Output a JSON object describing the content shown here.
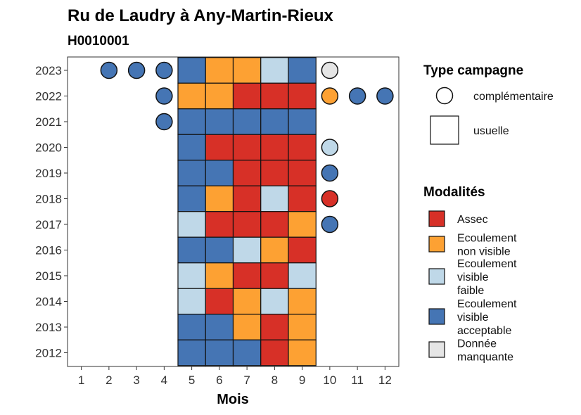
{
  "chart_data": {
    "type": "heatmap",
    "title": "Ru de Laudry à Any-Martin-Rieux",
    "subtitle": "H0010001",
    "xlabel": "Mois",
    "ylabel": "",
    "x_ticks": [
      1,
      2,
      3,
      4,
      5,
      6,
      7,
      8,
      9,
      10,
      11,
      12
    ],
    "y_ticks": [
      2012,
      2013,
      2014,
      2015,
      2016,
      2017,
      2018,
      2019,
      2020,
      2021,
      2022,
      2023
    ],
    "xlim": [
      0.5,
      12.5
    ],
    "grid": false,
    "legend_position": "right",
    "modalities": [
      {
        "key": "assec",
        "label_lines": [
          "Assec"
        ],
        "color": "#D73027"
      },
      {
        "key": "nonvis",
        "label_lines": [
          "Ecoulement",
          "non visible"
        ],
        "color": "#FDA133"
      },
      {
        "key": "faible",
        "label_lines": [
          "Ecoulement",
          "visible",
          "faible"
        ],
        "color": "#BFD8E8"
      },
      {
        "key": "accept",
        "label_lines": [
          "Ecoulement",
          "visible",
          "acceptable"
        ],
        "color": "#4575B4"
      },
      {
        "key": "manq",
        "label_lines": [
          "Donnée",
          "manquante"
        ],
        "color": "#E5E5E5"
      }
    ],
    "campaign_types": [
      {
        "key": "complementaire",
        "label": "complémentaire",
        "shape": "circle"
      },
      {
        "key": "usuelle",
        "label": "usuelle",
        "shape": "square"
      }
    ],
    "legend_titles": {
      "campaign": "Type campagne",
      "modalities": "Modalités"
    },
    "observations": [
      {
        "year": 2023,
        "month": 2,
        "value": "accept",
        "campaign": "complementaire"
      },
      {
        "year": 2023,
        "month": 3,
        "value": "accept",
        "campaign": "complementaire"
      },
      {
        "year": 2023,
        "month": 4,
        "value": "accept",
        "campaign": "complementaire"
      },
      {
        "year": 2023,
        "month": 5,
        "value": "accept",
        "campaign": "usuelle"
      },
      {
        "year": 2023,
        "month": 6,
        "value": "nonvis",
        "campaign": "usuelle"
      },
      {
        "year": 2023,
        "month": 7,
        "value": "nonvis",
        "campaign": "usuelle"
      },
      {
        "year": 2023,
        "month": 8,
        "value": "faible",
        "campaign": "usuelle"
      },
      {
        "year": 2023,
        "month": 9,
        "value": "accept",
        "campaign": "usuelle"
      },
      {
        "year": 2023,
        "month": 10,
        "value": "manq",
        "campaign": "complementaire"
      },
      {
        "year": 2022,
        "month": 4,
        "value": "accept",
        "campaign": "complementaire"
      },
      {
        "year": 2022,
        "month": 5,
        "value": "nonvis",
        "campaign": "usuelle"
      },
      {
        "year": 2022,
        "month": 6,
        "value": "nonvis",
        "campaign": "usuelle"
      },
      {
        "year": 2022,
        "month": 7,
        "value": "assec",
        "campaign": "usuelle"
      },
      {
        "year": 2022,
        "month": 8,
        "value": "assec",
        "campaign": "usuelle"
      },
      {
        "year": 2022,
        "month": 9,
        "value": "assec",
        "campaign": "usuelle"
      },
      {
        "year": 2022,
        "month": 10,
        "value": "nonvis",
        "campaign": "complementaire"
      },
      {
        "year": 2022,
        "month": 11,
        "value": "accept",
        "campaign": "complementaire"
      },
      {
        "year": 2022,
        "month": 12,
        "value": "accept",
        "campaign": "complementaire"
      },
      {
        "year": 2021,
        "month": 4,
        "value": "accept",
        "campaign": "complementaire"
      },
      {
        "year": 2021,
        "month": 5,
        "value": "accept",
        "campaign": "usuelle"
      },
      {
        "year": 2021,
        "month": 6,
        "value": "accept",
        "campaign": "usuelle"
      },
      {
        "year": 2021,
        "month": 7,
        "value": "accept",
        "campaign": "usuelle"
      },
      {
        "year": 2021,
        "month": 8,
        "value": "accept",
        "campaign": "usuelle"
      },
      {
        "year": 2021,
        "month": 9,
        "value": "accept",
        "campaign": "usuelle"
      },
      {
        "year": 2020,
        "month": 5,
        "value": "accept",
        "campaign": "usuelle"
      },
      {
        "year": 2020,
        "month": 6,
        "value": "assec",
        "campaign": "usuelle"
      },
      {
        "year": 2020,
        "month": 7,
        "value": "assec",
        "campaign": "usuelle"
      },
      {
        "year": 2020,
        "month": 8,
        "value": "assec",
        "campaign": "usuelle"
      },
      {
        "year": 2020,
        "month": 9,
        "value": "assec",
        "campaign": "usuelle"
      },
      {
        "year": 2020,
        "month": 10,
        "value": "faible",
        "campaign": "complementaire"
      },
      {
        "year": 2019,
        "month": 5,
        "value": "accept",
        "campaign": "usuelle"
      },
      {
        "year": 2019,
        "month": 6,
        "value": "accept",
        "campaign": "usuelle"
      },
      {
        "year": 2019,
        "month": 7,
        "value": "assec",
        "campaign": "usuelle"
      },
      {
        "year": 2019,
        "month": 8,
        "value": "assec",
        "campaign": "usuelle"
      },
      {
        "year": 2019,
        "month": 9,
        "value": "assec",
        "campaign": "usuelle"
      },
      {
        "year": 2019,
        "month": 10,
        "value": "accept",
        "campaign": "complementaire"
      },
      {
        "year": 2018,
        "month": 5,
        "value": "accept",
        "campaign": "usuelle"
      },
      {
        "year": 2018,
        "month": 6,
        "value": "nonvis",
        "campaign": "usuelle"
      },
      {
        "year": 2018,
        "month": 7,
        "value": "assec",
        "campaign": "usuelle"
      },
      {
        "year": 2018,
        "month": 8,
        "value": "faible",
        "campaign": "usuelle"
      },
      {
        "year": 2018,
        "month": 9,
        "value": "assec",
        "campaign": "usuelle"
      },
      {
        "year": 2018,
        "month": 10,
        "value": "assec",
        "campaign": "complementaire"
      },
      {
        "year": 2017,
        "month": 5,
        "value": "faible",
        "campaign": "usuelle"
      },
      {
        "year": 2017,
        "month": 6,
        "value": "assec",
        "campaign": "usuelle"
      },
      {
        "year": 2017,
        "month": 7,
        "value": "assec",
        "campaign": "usuelle"
      },
      {
        "year": 2017,
        "month": 8,
        "value": "assec",
        "campaign": "usuelle"
      },
      {
        "year": 2017,
        "month": 9,
        "value": "nonvis",
        "campaign": "usuelle"
      },
      {
        "year": 2017,
        "month": 10,
        "value": "accept",
        "campaign": "complementaire"
      },
      {
        "year": 2016,
        "month": 5,
        "value": "accept",
        "campaign": "usuelle"
      },
      {
        "year": 2016,
        "month": 6,
        "value": "accept",
        "campaign": "usuelle"
      },
      {
        "year": 2016,
        "month": 7,
        "value": "faible",
        "campaign": "usuelle"
      },
      {
        "year": 2016,
        "month": 8,
        "value": "nonvis",
        "campaign": "usuelle"
      },
      {
        "year": 2016,
        "month": 9,
        "value": "assec",
        "campaign": "usuelle"
      },
      {
        "year": 2015,
        "month": 5,
        "value": "faible",
        "campaign": "usuelle"
      },
      {
        "year": 2015,
        "month": 6,
        "value": "nonvis",
        "campaign": "usuelle"
      },
      {
        "year": 2015,
        "month": 7,
        "value": "assec",
        "campaign": "usuelle"
      },
      {
        "year": 2015,
        "month": 8,
        "value": "assec",
        "campaign": "usuelle"
      },
      {
        "year": 2015,
        "month": 9,
        "value": "faible",
        "campaign": "usuelle"
      },
      {
        "year": 2014,
        "month": 5,
        "value": "faible",
        "campaign": "usuelle"
      },
      {
        "year": 2014,
        "month": 6,
        "value": "assec",
        "campaign": "usuelle"
      },
      {
        "year": 2014,
        "month": 7,
        "value": "nonvis",
        "campaign": "usuelle"
      },
      {
        "year": 2014,
        "month": 8,
        "value": "faible",
        "campaign": "usuelle"
      },
      {
        "year": 2014,
        "month": 9,
        "value": "nonvis",
        "campaign": "usuelle"
      },
      {
        "year": 2013,
        "month": 5,
        "value": "accept",
        "campaign": "usuelle"
      },
      {
        "year": 2013,
        "month": 6,
        "value": "accept",
        "campaign": "usuelle"
      },
      {
        "year": 2013,
        "month": 7,
        "value": "nonvis",
        "campaign": "usuelle"
      },
      {
        "year": 2013,
        "month": 8,
        "value": "assec",
        "campaign": "usuelle"
      },
      {
        "year": 2013,
        "month": 9,
        "value": "nonvis",
        "campaign": "usuelle"
      },
      {
        "year": 2012,
        "month": 5,
        "value": "accept",
        "campaign": "usuelle"
      },
      {
        "year": 2012,
        "month": 6,
        "value": "accept",
        "campaign": "usuelle"
      },
      {
        "year": 2012,
        "month": 7,
        "value": "accept",
        "campaign": "usuelle"
      },
      {
        "year": 2012,
        "month": 8,
        "value": "assec",
        "campaign": "usuelle"
      },
      {
        "year": 2012,
        "month": 9,
        "value": "nonvis",
        "campaign": "usuelle"
      }
    ]
  }
}
